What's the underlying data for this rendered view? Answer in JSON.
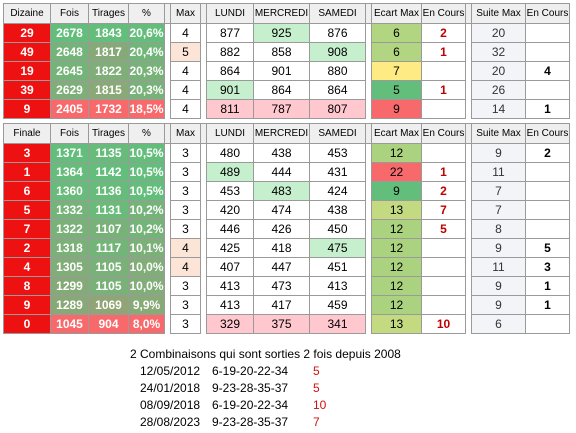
{
  "dizaine_table": {
    "headers": [
      "Dizaine",
      "Fois",
      "Tirages",
      "%",
      "Max",
      "LUNDI",
      "MERCREDI",
      "SAMEDI",
      "Ecart Max",
      "En Cours",
      "Suite Max",
      "En Cours"
    ],
    "rows": [
      {
        "key": "29",
        "fois": "2678",
        "tirages": "1843",
        "pct": "20,6%",
        "max": "4",
        "lundi": "877",
        "mercredi": "925",
        "samedi": "876",
        "ecart_max": "6",
        "en_cours": "2",
        "suite_max": "20",
        "en_cours2": ""
      },
      {
        "key": "49",
        "fois": "2648",
        "tirages": "1817",
        "pct": "20,4%",
        "max": "5",
        "lundi": "882",
        "mercredi": "858",
        "samedi": "908",
        "ecart_max": "6",
        "en_cours": "1",
        "suite_max": "32",
        "en_cours2": ""
      },
      {
        "key": "19",
        "fois": "2645",
        "tirages": "1822",
        "pct": "20,3%",
        "max": "4",
        "lundi": "864",
        "mercredi": "901",
        "samedi": "880",
        "ecart_max": "7",
        "en_cours": "",
        "suite_max": "20",
        "en_cours2": "4"
      },
      {
        "key": "39",
        "fois": "2629",
        "tirages": "1815",
        "pct": "20,3%",
        "max": "4",
        "lundi": "901",
        "mercredi": "864",
        "samedi": "864",
        "ecart_max": "5",
        "en_cours": "1",
        "suite_max": "26",
        "en_cours2": ""
      },
      {
        "key": "9",
        "fois": "2405",
        "tirages": "1732",
        "pct": "18,5%",
        "max": "4",
        "lundi": "811",
        "mercredi": "787",
        "samedi": "807",
        "ecart_max": "9",
        "en_cours": "",
        "suite_max": "14",
        "en_cours2": "1"
      }
    ]
  },
  "finale_table": {
    "headers": [
      "Finale",
      "Fois",
      "Tirages",
      "%",
      "Max",
      "LUNDI",
      "MERCREDI",
      "SAMEDI",
      "Ecart Max",
      "En Cours",
      "Suite Max",
      "En Cours"
    ],
    "rows": [
      {
        "key": "3",
        "fois": "1371",
        "tirages": "1135",
        "pct": "10,5%",
        "max": "3",
        "lundi": "480",
        "mercredi": "438",
        "samedi": "453",
        "ecart_max": "12",
        "en_cours": "",
        "suite_max": "9",
        "en_cours2": "2"
      },
      {
        "key": "1",
        "fois": "1364",
        "tirages": "1142",
        "pct": "10,5%",
        "max": "3",
        "lundi": "489",
        "mercredi": "444",
        "samedi": "431",
        "ecart_max": "22",
        "en_cours": "1",
        "suite_max": "11",
        "en_cours2": ""
      },
      {
        "key": "6",
        "fois": "1360",
        "tirages": "1136",
        "pct": "10,5%",
        "max": "3",
        "lundi": "453",
        "mercredi": "483",
        "samedi": "424",
        "ecart_max": "9",
        "en_cours": "2",
        "suite_max": "7",
        "en_cours2": ""
      },
      {
        "key": "5",
        "fois": "1332",
        "tirages": "1131",
        "pct": "10,2%",
        "max": "3",
        "lundi": "420",
        "mercredi": "474",
        "samedi": "438",
        "ecart_max": "13",
        "en_cours": "7",
        "suite_max": "7",
        "en_cours2": ""
      },
      {
        "key": "7",
        "fois": "1322",
        "tirages": "1107",
        "pct": "10,2%",
        "max": "3",
        "lundi": "446",
        "mercredi": "426",
        "samedi": "450",
        "ecart_max": "12",
        "en_cours": "5",
        "suite_max": "8",
        "en_cours2": ""
      },
      {
        "key": "2",
        "fois": "1318",
        "tirages": "1117",
        "pct": "10,1%",
        "max": "4",
        "lundi": "425",
        "mercredi": "418",
        "samedi": "475",
        "ecart_max": "12",
        "en_cours": "",
        "suite_max": "9",
        "en_cours2": "5"
      },
      {
        "key": "4",
        "fois": "1305",
        "tirages": "1105",
        "pct": "10,0%",
        "max": "4",
        "lundi": "407",
        "mercredi": "447",
        "samedi": "451",
        "ecart_max": "12",
        "en_cours": "",
        "suite_max": "11",
        "en_cours2": "3"
      },
      {
        "key": "8",
        "fois": "1299",
        "tirages": "1105",
        "pct": "10,0%",
        "max": "3",
        "lundi": "413",
        "mercredi": "473",
        "samedi": "413",
        "ecart_max": "12",
        "en_cours": "",
        "suite_max": "9",
        "en_cours2": "1"
      },
      {
        "key": "9",
        "fois": "1289",
        "tirages": "1069",
        "pct": "9,9%",
        "max": "3",
        "lundi": "413",
        "mercredi": "417",
        "samedi": "459",
        "ecart_max": "12",
        "en_cours": "",
        "suite_max": "9",
        "en_cours2": "1"
      },
      {
        "key": "0",
        "fois": "1045",
        "tirages": "904",
        "pct": "8,0%",
        "max": "3",
        "lundi": "329",
        "mercredi": "375",
        "samedi": "341",
        "ecart_max": "13",
        "en_cours": "10",
        "suite_max": "6",
        "en_cours2": ""
      }
    ]
  },
  "combinaisons": {
    "title": "2 Combinaisons qui sont sorties 2 fois depuis 2008",
    "items": [
      {
        "date": "12/05/2012",
        "numbers": "6-19-20-22-34",
        "gap": "5"
      },
      {
        "date": "24/01/2018",
        "numbers": "9-23-28-35-37",
        "gap": "5"
      },
      {
        "date": "08/09/2018",
        "numbers": "6-19-20-22-34",
        "gap": "10"
      },
      {
        "date": "28/08/2023",
        "numbers": "9-23-28-35-37",
        "gap": "7"
      }
    ]
  },
  "colors": {
    "key_red": "#ee1111",
    "fois_scale": [
      "#63be7b",
      "#f8696b"
    ],
    "tirages_scale": [
      "#63be7b",
      "#f8696b"
    ],
    "pct_scale": [
      "#63be7b",
      "#f8696b"
    ],
    "day_high": "#c6efce",
    "day_low": "#ffc7ce",
    "ecart_scale": [
      "#63be7b",
      "#ffeb84",
      "#f8696b"
    ],
    "max_high": "#fce4d6",
    "en_cours_red": "#c00000"
  }
}
